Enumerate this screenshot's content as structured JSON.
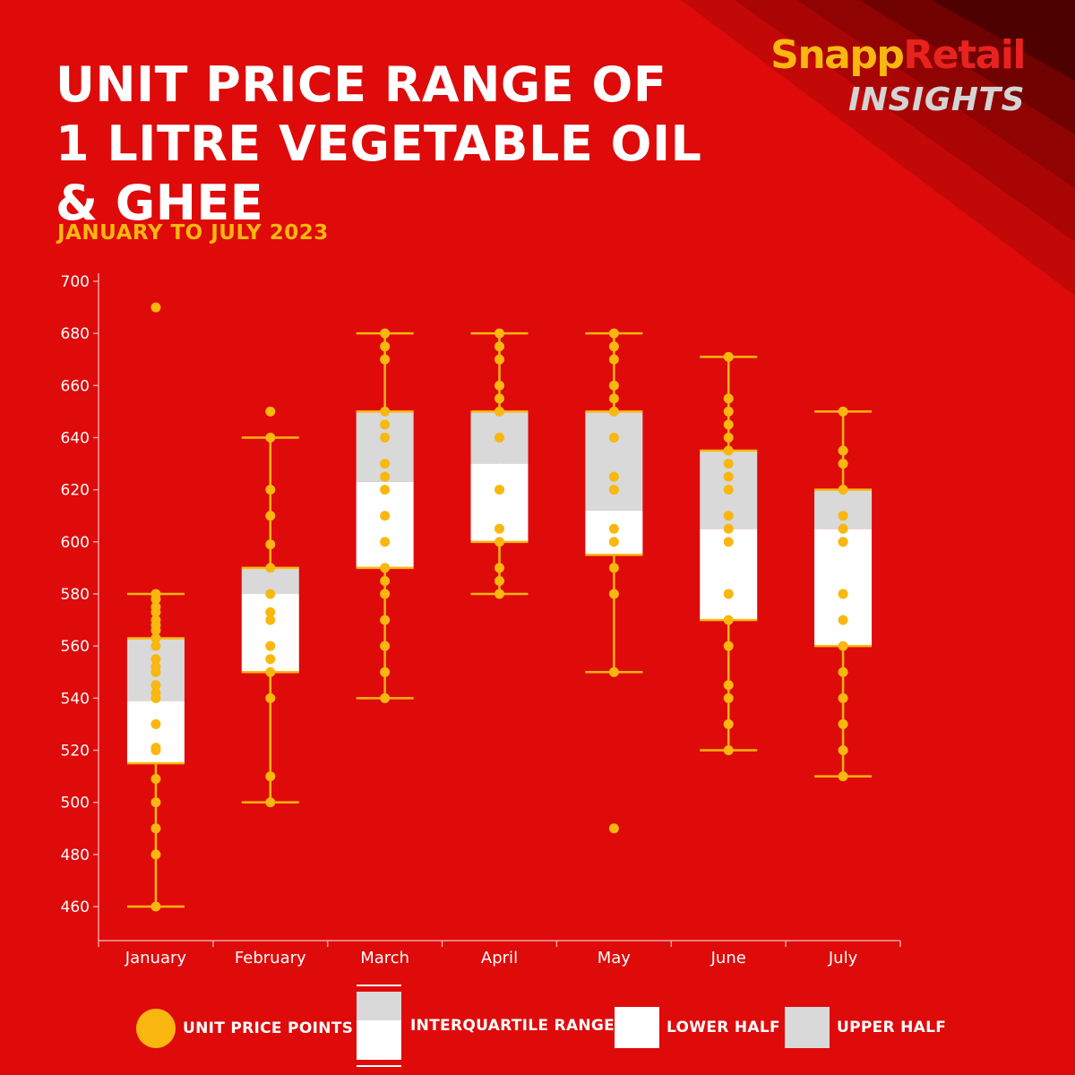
{
  "header": {
    "title_lines": [
      "UNIT PRICE RANGE OF",
      "1 LITRE VEGETABLE OIL",
      "& GHEE"
    ],
    "subtitle": "JANUARY TO JULY 2023"
  },
  "brand": {
    "name_part1": "Snapp",
    "name_part2": "Retail",
    "tagline": "INSIGHTS"
  },
  "colors": {
    "background": "#df0a0a",
    "accent": "#f9b70f",
    "upper_half": "#d9d9d9",
    "lower_half": "#ffffff",
    "logo_red": "#e8231f"
  },
  "legend": {
    "points_label": "UNIT PRICE POINTS",
    "iqr_label": "INTERQUARTILE RANGE",
    "lower_label": "LOWER HALF",
    "upper_label": "UPPER HALF"
  },
  "chart_data": {
    "type": "box",
    "categories": [
      "January",
      "February",
      "March",
      "April",
      "May",
      "June",
      "July"
    ],
    "ylim": [
      445,
      705
    ],
    "yticks": [
      460,
      480,
      500,
      520,
      540,
      560,
      580,
      600,
      620,
      640,
      660,
      680,
      700
    ],
    "grid": false,
    "legend_position": "bottom",
    "boxes": [
      {
        "month": "January",
        "min": 460,
        "q1": 515,
        "median": 539,
        "q3": 563,
        "max": 580,
        "points": [
          690,
          580,
          578,
          575,
          573,
          570,
          568,
          566,
          563,
          560,
          555,
          552,
          550,
          545,
          542,
          540,
          530,
          521,
          520,
          509,
          500,
          490,
          480,
          460
        ]
      },
      {
        "month": "February",
        "min": 500,
        "q1": 550,
        "median": 580,
        "q3": 590,
        "max": 640,
        "points": [
          650,
          640,
          620,
          610,
          599,
          590,
          580,
          573,
          570,
          560,
          555,
          550,
          540,
          510,
          500
        ]
      },
      {
        "month": "March",
        "min": 540,
        "q1": 590,
        "median": 623,
        "q3": 650,
        "max": 680,
        "points": [
          680,
          675,
          670,
          650,
          645,
          640,
          630,
          625,
          620,
          610,
          600,
          590,
          585,
          580,
          570,
          560,
          550,
          540
        ]
      },
      {
        "month": "April",
        "min": 580,
        "q1": 600,
        "median": 630,
        "q3": 650,
        "max": 680,
        "points": [
          680,
          675,
          670,
          660,
          655,
          650,
          640,
          620,
          605,
          600,
          590,
          585,
          580
        ]
      },
      {
        "month": "May",
        "min": 550,
        "q1": 595,
        "median": 612,
        "q3": 650,
        "max": 680,
        "points": [
          680,
          675,
          670,
          660,
          655,
          650,
          640,
          625,
          620,
          605,
          600,
          590,
          580,
          550,
          490
        ]
      },
      {
        "month": "June",
        "min": 520,
        "q1": 570,
        "median": 605,
        "q3": 635,
        "max": 671,
        "points": [
          671,
          655,
          650,
          645,
          640,
          635,
          630,
          625,
          620,
          610,
          605,
          600,
          580,
          570,
          560,
          545,
          540,
          530,
          520
        ]
      },
      {
        "month": "July",
        "min": 510,
        "q1": 560,
        "median": 605,
        "q3": 620,
        "max": 650,
        "points": [
          650,
          635,
          630,
          620,
          610,
          605,
          600,
          580,
          570,
          560,
          550,
          540,
          530,
          520,
          510
        ]
      }
    ]
  }
}
